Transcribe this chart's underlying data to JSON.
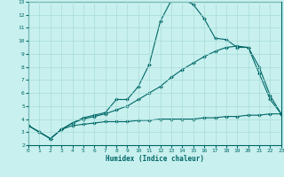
{
  "xlabel": "Humidex (Indice chaleur)",
  "ylabel": "",
  "xlim": [
    0,
    23
  ],
  "ylim": [
    2,
    13
  ],
  "yticks": [
    2,
    3,
    4,
    5,
    6,
    7,
    8,
    9,
    10,
    11,
    12,
    13
  ],
  "xticks": [
    0,
    1,
    2,
    3,
    4,
    5,
    6,
    7,
    8,
    9,
    10,
    11,
    12,
    13,
    14,
    15,
    16,
    17,
    18,
    19,
    20,
    21,
    22,
    23
  ],
  "color": "#006868",
  "bg_color": "#c8f0ee",
  "grid_color": "#a8dcd8",
  "line1_x": [
    0,
    1,
    2,
    3,
    4,
    5,
    6,
    7,
    8,
    9,
    10,
    11,
    12,
    13,
    14,
    15,
    16,
    17,
    18,
    19,
    20,
    21,
    22,
    23
  ],
  "line1_y": [
    3.5,
    3.0,
    2.5,
    3.2,
    3.7,
    4.1,
    4.3,
    4.5,
    5.5,
    5.5,
    6.5,
    8.2,
    11.5,
    13.1,
    13.2,
    12.8,
    11.7,
    10.2,
    10.1,
    9.5,
    9.5,
    7.5,
    5.5,
    4.4
  ],
  "line2_x": [
    0,
    1,
    2,
    3,
    4,
    5,
    6,
    7,
    8,
    9,
    10,
    11,
    12,
    13,
    14,
    15,
    16,
    17,
    18,
    19,
    20,
    21,
    22,
    23
  ],
  "line2_y": [
    3.5,
    3.0,
    2.5,
    3.2,
    3.7,
    4.0,
    4.2,
    4.4,
    4.7,
    5.0,
    5.5,
    6.0,
    6.5,
    7.2,
    7.8,
    8.3,
    8.8,
    9.2,
    9.5,
    9.6,
    9.5,
    8.0,
    5.8,
    4.4
  ],
  "line3_x": [
    0,
    1,
    2,
    3,
    4,
    5,
    6,
    7,
    8,
    9,
    10,
    11,
    12,
    13,
    14,
    15,
    16,
    17,
    18,
    19,
    20,
    21,
    22,
    23
  ],
  "line3_y": [
    3.5,
    3.0,
    2.5,
    3.2,
    3.5,
    3.6,
    3.7,
    3.8,
    3.8,
    3.8,
    3.9,
    3.9,
    4.0,
    4.0,
    4.0,
    4.0,
    4.1,
    4.1,
    4.2,
    4.2,
    4.3,
    4.3,
    4.4,
    4.4
  ]
}
